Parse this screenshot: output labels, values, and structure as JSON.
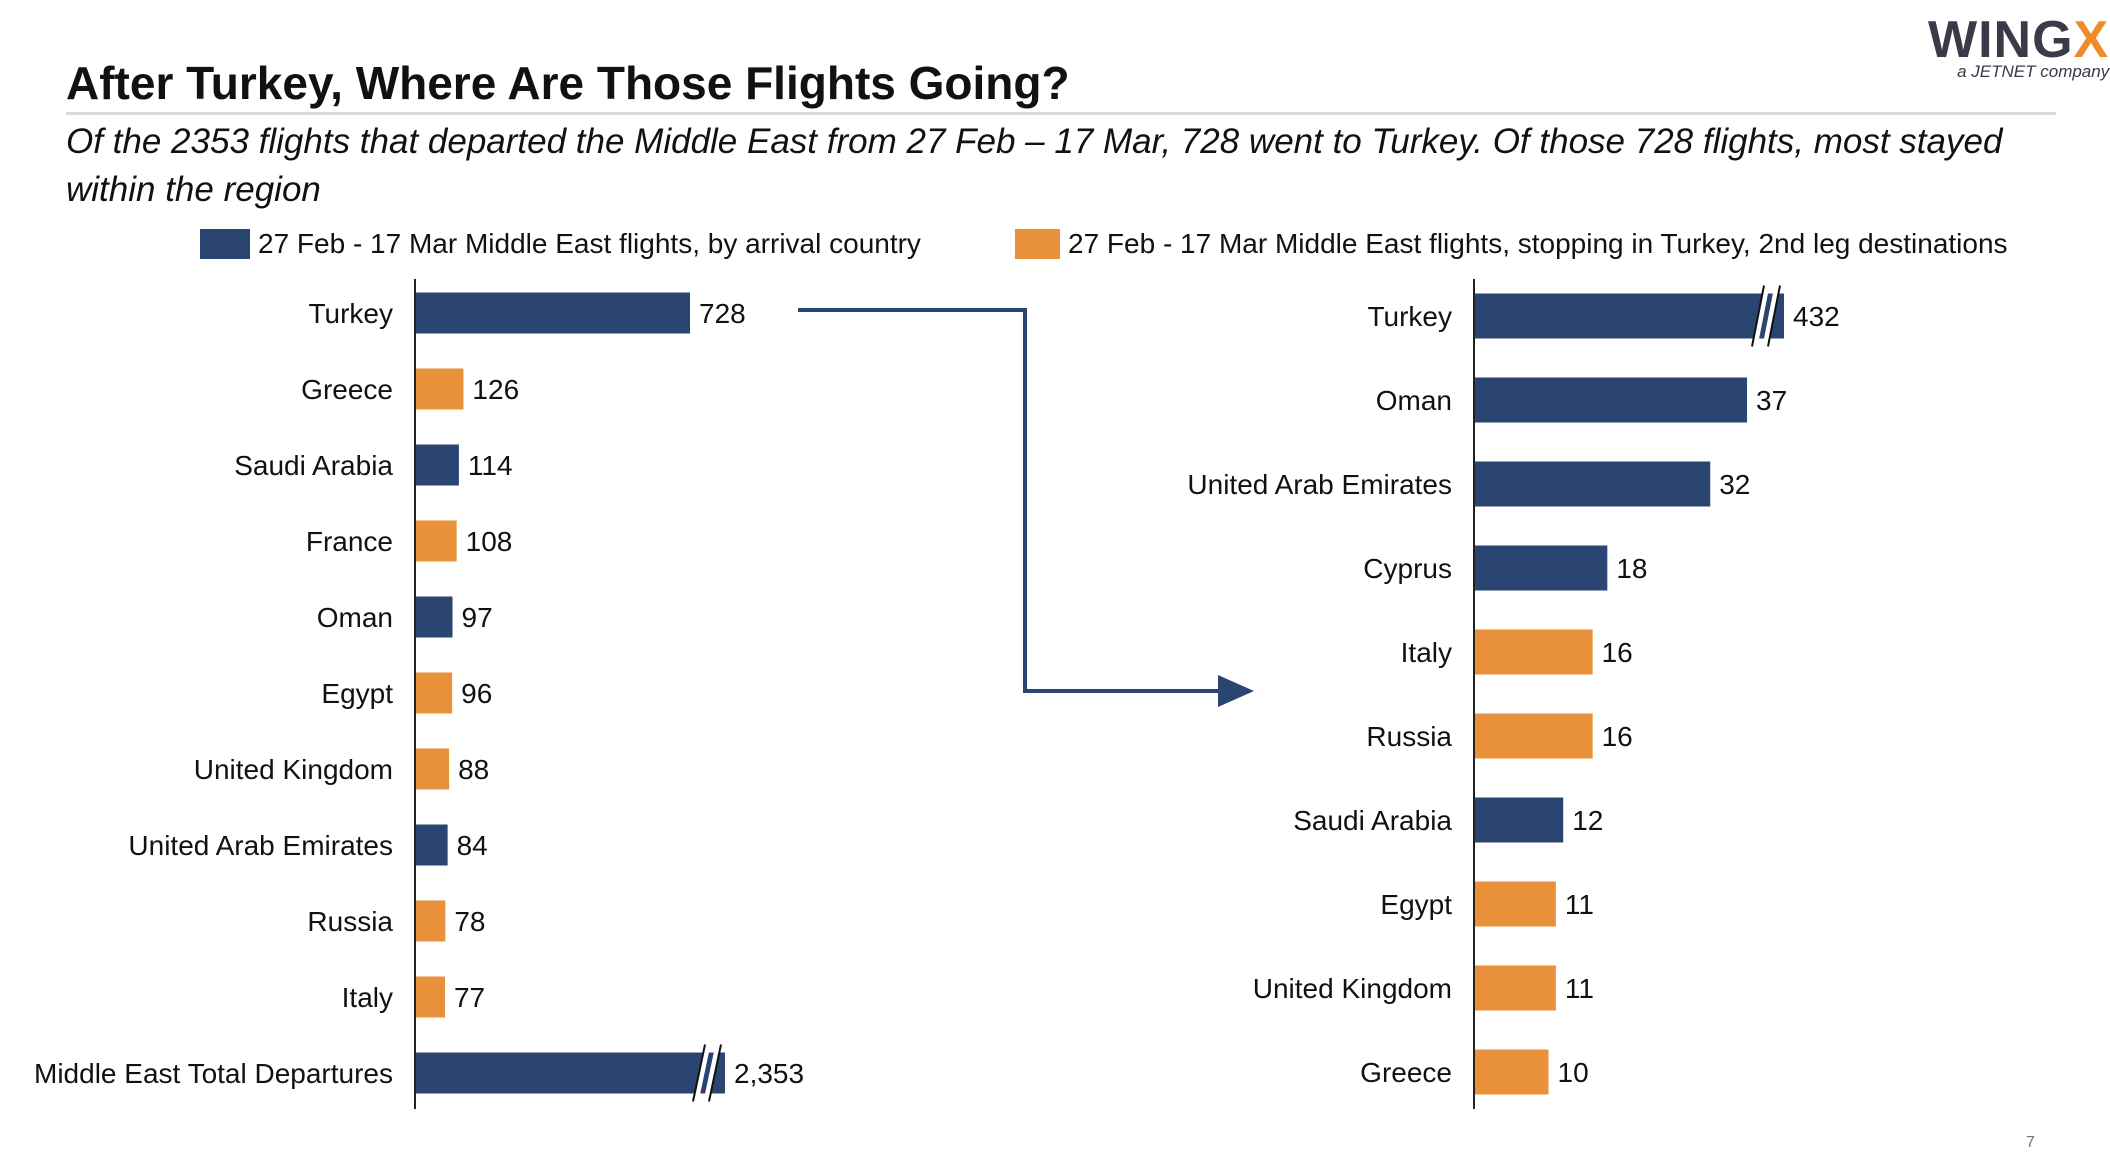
{
  "title": "After Turkey, Where Are Those Flights Going?",
  "subtitle": "Of the 2353 flights that departed the Middle East from 27 Feb – 17 Mar, 728 went to Turkey. Of those 728 flights, most stayed within the region",
  "logo": {
    "brand_main": "WING",
    "brand_accent": "X",
    "tagline": "a JETNET company"
  },
  "page_number": "7",
  "colors": {
    "blue": "#2b4573",
    "orange": "#e8913a"
  },
  "legend": [
    {
      "label": "27 Feb -  17 Mar Middle East flights, by arrival country",
      "color": "#2b4573"
    },
    {
      "label": "27 Feb - 17 Mar Middle East flights, stopping in Turkey, 2nd leg destinations",
      "color": "#e8913a"
    }
  ],
  "chart_data": [
    {
      "type": "bar",
      "orientation": "horizontal",
      "categories": [
        "Turkey",
        "Greece",
        "Saudi Arabia",
        "France",
        "Oman",
        "Egypt",
        "United Kingdom",
        "United Arab Emirates",
        "Russia",
        "Italy",
        "Middle East Total Departures"
      ],
      "values": [
        728,
        126,
        114,
        108,
        97,
        96,
        88,
        84,
        78,
        77,
        2353
      ],
      "value_labels": [
        "728",
        "126",
        "114",
        "108",
        "97",
        "96",
        "88",
        "84",
        "78",
        "77",
        "2,353"
      ],
      "colors": [
        "blue",
        "orange",
        "blue",
        "orange",
        "blue",
        "orange",
        "orange",
        "blue",
        "orange",
        "orange",
        "blue"
      ],
      "broken_axis_bars": [
        "Middle East Total Departures"
      ]
    },
    {
      "type": "bar",
      "orientation": "horizontal",
      "categories": [
        "Turkey",
        "Oman",
        "United Arab Emirates",
        "Cyprus",
        "Italy",
        "Russia",
        "Saudi Arabia",
        "Egypt",
        "United Kingdom",
        "Greece"
      ],
      "values": [
        432,
        37,
        32,
        18,
        16,
        16,
        12,
        11,
        11,
        10
      ],
      "value_labels": [
        "432",
        "37",
        "32",
        "18",
        "16",
        "16",
        "12",
        "11",
        "11",
        "10"
      ],
      "colors": [
        "blue",
        "blue",
        "blue",
        "blue",
        "orange",
        "orange",
        "blue",
        "orange",
        "orange",
        "orange"
      ],
      "broken_axis_bars": [
        "Turkey"
      ]
    }
  ]
}
